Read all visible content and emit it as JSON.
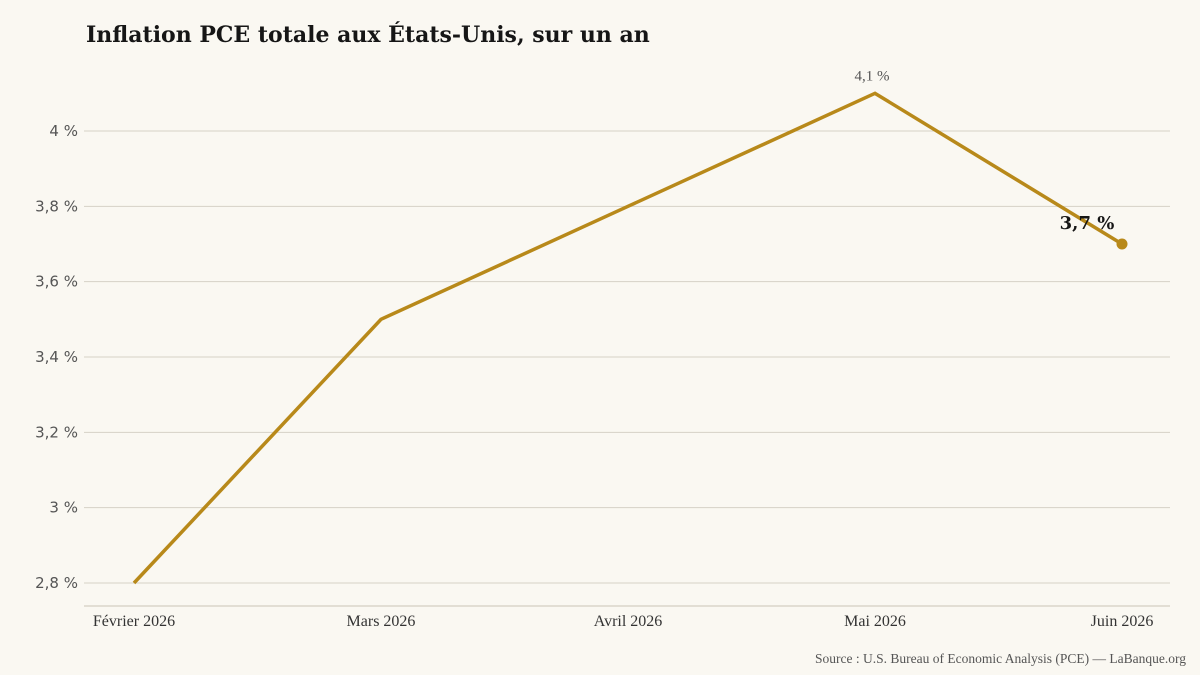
{
  "chart_data": {
    "type": "line",
    "title": "Inflation PCE totale aux États-Unis, sur un an",
    "categories": [
      "Février 2026",
      "Mars 2026",
      "Avril 2026",
      "Mai 2026",
      "Juin 2026"
    ],
    "series": [
      {
        "values": [
          2.8,
          3.5,
          3.8,
          4.1,
          3.7
        ],
        "color": "#b8891a"
      }
    ],
    "ylim": [
      2.8,
      4.1
    ],
    "yticks": [
      2.8,
      3.0,
      3.2,
      3.4,
      3.6,
      3.8,
      4.0
    ],
    "ytick_labels": [
      "2,8 %",
      "3 %",
      "3,2 %",
      "3,4 %",
      "3,6 %",
      "3,8 %",
      "4 %"
    ],
    "data_labels": [
      {
        "index": 3,
        "text": "4,1 %"
      },
      {
        "index": 4,
        "text": "3,7 %"
      }
    ],
    "grid": true,
    "xlabel": "",
    "ylabel": "",
    "source": "Source : U.S. Bureau of Economic Analysis (PCE) — LaBanque.org"
  }
}
